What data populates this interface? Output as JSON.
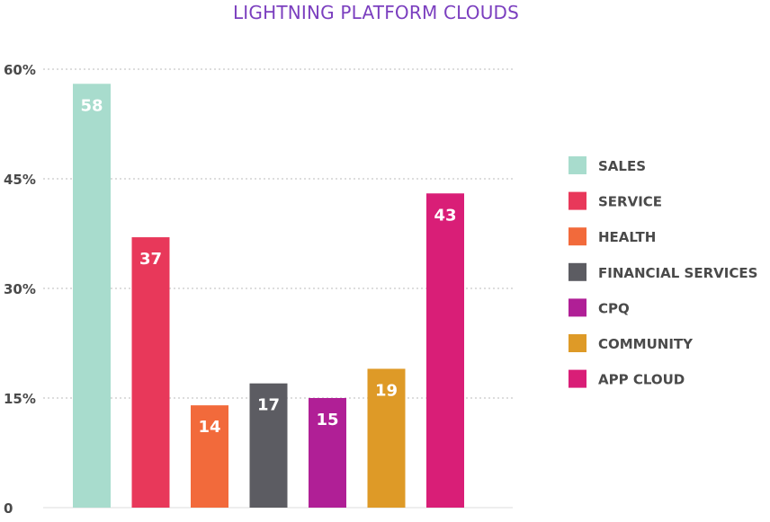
{
  "chart_data": {
    "type": "bar",
    "title": "LIGHTNING PLATFORM CLOUDS",
    "xlabel": "",
    "ylabel": "",
    "ylim": [
      0,
      60
    ],
    "yticks": [
      0,
      15,
      30,
      45,
      60
    ],
    "ytick_labels": [
      "0",
      "15%",
      "30%",
      "45%",
      "60%"
    ],
    "grid": true,
    "legend_position": "right",
    "categories": [
      "SALES",
      "SERVICE",
      "HEALTH",
      "FINANCIAL SERVICES",
      "CPQ",
      "COMMUNITY",
      "APP CLOUD"
    ],
    "values": [
      58,
      37,
      14,
      17,
      15,
      19,
      43
    ],
    "data_labels": [
      "58",
      "37",
      "14",
      "17",
      "15",
      "19",
      "43"
    ],
    "colors": [
      "#a8dccd",
      "#e8385a",
      "#f26a3b",
      "#5c5c62",
      "#b01f96",
      "#de9a27",
      "#d91e77"
    ]
  },
  "colors": {
    "title": "#7b3fbf",
    "axis_text": "#4a4a4a",
    "grid": "#bbbbbb",
    "legend_text": "#4a4a4a",
    "bar_label": "#ffffff"
  }
}
